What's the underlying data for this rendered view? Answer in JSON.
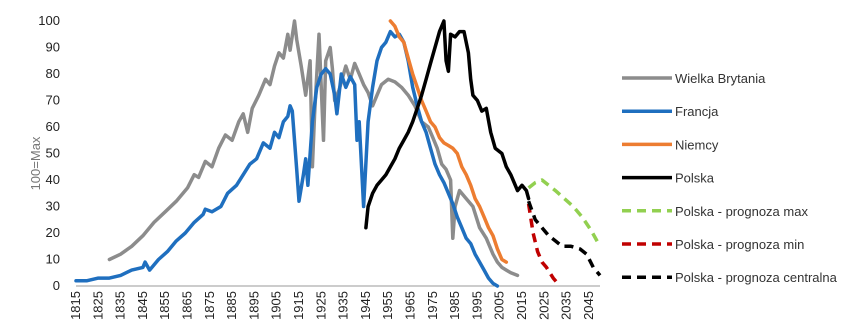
{
  "chart_data": {
    "type": "line",
    "ylabel": "100=Max",
    "ylim": [
      0,
      100
    ],
    "xlim": [
      1815,
      2050
    ],
    "y_ticks": [
      "0",
      "10",
      "20",
      "30",
      "40",
      "50",
      "60",
      "70",
      "80",
      "90",
      "100"
    ],
    "x_ticks": [
      "1815",
      "1825",
      "1835",
      "1845",
      "1855",
      "1865",
      "1875",
      "1885",
      "1895",
      "1905",
      "1915",
      "1925",
      "1935",
      "1945",
      "1955",
      "1965",
      "1975",
      "1985",
      "1995",
      "2005",
      "2015",
      "2025",
      "2035",
      "2045"
    ],
    "legend_position": "right",
    "grid": false,
    "series": [
      {
        "name": "Wielka Brytania",
        "color": "#8c8c8c",
        "dash": false,
        "points": [
          [
            1830,
            10
          ],
          [
            1835,
            12
          ],
          [
            1840,
            15
          ],
          [
            1845,
            19
          ],
          [
            1850,
            24
          ],
          [
            1855,
            28
          ],
          [
            1860,
            32
          ],
          [
            1865,
            37
          ],
          [
            1868,
            42
          ],
          [
            1870,
            41
          ],
          [
            1873,
            47
          ],
          [
            1876,
            45
          ],
          [
            1879,
            52
          ],
          [
            1882,
            57
          ],
          [
            1885,
            55
          ],
          [
            1888,
            62
          ],
          [
            1890,
            65
          ],
          [
            1892,
            58
          ],
          [
            1894,
            67
          ],
          [
            1897,
            72
          ],
          [
            1900,
            78
          ],
          [
            1902,
            76
          ],
          [
            1904,
            83
          ],
          [
            1906,
            88
          ],
          [
            1908,
            86
          ],
          [
            1910,
            95
          ],
          [
            1911,
            89
          ],
          [
            1913,
            100
          ],
          [
            1914,
            93
          ],
          [
            1916,
            83
          ],
          [
            1918,
            72
          ],
          [
            1920,
            85
          ],
          [
            1921,
            45
          ],
          [
            1922,
            65
          ],
          [
            1924,
            95
          ],
          [
            1926,
            55
          ],
          [
            1927,
            85
          ],
          [
            1929,
            90
          ],
          [
            1930,
            82
          ],
          [
            1931,
            70
          ],
          [
            1933,
            74
          ],
          [
            1936,
            83
          ],
          [
            1938,
            78
          ],
          [
            1940,
            84
          ],
          [
            1942,
            80
          ],
          [
            1944,
            76
          ],
          [
            1946,
            73
          ],
          [
            1948,
            68
          ],
          [
            1950,
            72
          ],
          [
            1952,
            76
          ],
          [
            1955,
            78
          ],
          [
            1958,
            77
          ],
          [
            1961,
            75
          ],
          [
            1964,
            72
          ],
          [
            1967,
            68
          ],
          [
            1970,
            62
          ],
          [
            1973,
            60
          ],
          [
            1975,
            56
          ],
          [
            1977,
            52
          ],
          [
            1979,
            46
          ],
          [
            1981,
            44
          ],
          [
            1983,
            40
          ],
          [
            1984,
            18
          ],
          [
            1985,
            30
          ],
          [
            1987,
            36
          ],
          [
            1990,
            33
          ],
          [
            1993,
            30
          ],
          [
            1996,
            22
          ],
          [
            1999,
            18
          ],
          [
            2002,
            12
          ],
          [
            2004,
            9
          ],
          [
            2006,
            7
          ],
          [
            2008,
            6
          ],
          [
            2010,
            5
          ],
          [
            2013,
            4
          ]
        ]
      },
      {
        "name": "Francja",
        "color": "#1f6fbf",
        "dash": false,
        "points": [
          [
            1815,
            2
          ],
          [
            1820,
            2
          ],
          [
            1825,
            3
          ],
          [
            1830,
            3
          ],
          [
            1835,
            4
          ],
          [
            1840,
            6
          ],
          [
            1845,
            7
          ],
          [
            1846,
            9
          ],
          [
            1848,
            6
          ],
          [
            1852,
            10
          ],
          [
            1856,
            13
          ],
          [
            1860,
            17
          ],
          [
            1864,
            20
          ],
          [
            1868,
            24
          ],
          [
            1872,
            27
          ],
          [
            1873,
            29
          ],
          [
            1876,
            28
          ],
          [
            1880,
            30
          ],
          [
            1883,
            35
          ],
          [
            1887,
            38
          ],
          [
            1890,
            42
          ],
          [
            1893,
            46
          ],
          [
            1896,
            48
          ],
          [
            1899,
            54
          ],
          [
            1902,
            52
          ],
          [
            1904,
            58
          ],
          [
            1906,
            56
          ],
          [
            1908,
            62
          ],
          [
            1910,
            64
          ],
          [
            1911,
            68
          ],
          [
            1912,
            66
          ],
          [
            1914,
            44
          ],
          [
            1915,
            32
          ],
          [
            1917,
            42
          ],
          [
            1918,
            48
          ],
          [
            1919,
            38
          ],
          [
            1921,
            62
          ],
          [
            1923,
            75
          ],
          [
            1925,
            80
          ],
          [
            1927,
            82
          ],
          [
            1929,
            80
          ],
          [
            1931,
            72
          ],
          [
            1932,
            65
          ],
          [
            1934,
            80
          ],
          [
            1936,
            75
          ],
          [
            1938,
            79
          ],
          [
            1940,
            76
          ],
          [
            1941,
            55
          ],
          [
            1942,
            62
          ],
          [
            1944,
            30
          ],
          [
            1946,
            62
          ],
          [
            1948,
            75
          ],
          [
            1950,
            85
          ],
          [
            1952,
            90
          ],
          [
            1954,
            92
          ],
          [
            1956,
            96
          ],
          [
            1958,
            94
          ],
          [
            1960,
            95
          ],
          [
            1962,
            92
          ],
          [
            1964,
            85
          ],
          [
            1966,
            75
          ],
          [
            1968,
            68
          ],
          [
            1970,
            62
          ],
          [
            1972,
            58
          ],
          [
            1974,
            52
          ],
          [
            1976,
            46
          ],
          [
            1978,
            42
          ],
          [
            1980,
            39
          ],
          [
            1982,
            35
          ],
          [
            1984,
            31
          ],
          [
            1986,
            26
          ],
          [
            1988,
            22
          ],
          [
            1990,
            18
          ],
          [
            1992,
            16
          ],
          [
            1994,
            12
          ],
          [
            1996,
            9
          ],
          [
            1998,
            6
          ],
          [
            2000,
            3
          ],
          [
            2002,
            1
          ],
          [
            2004,
            0
          ]
        ]
      },
      {
        "name": "Niemcy",
        "color": "#ed7d31",
        "dash": false,
        "points": [
          [
            1956,
            100
          ],
          [
            1958,
            98
          ],
          [
            1960,
            94
          ],
          [
            1962,
            92
          ],
          [
            1964,
            86
          ],
          [
            1966,
            80
          ],
          [
            1968,
            75
          ],
          [
            1970,
            70
          ],
          [
            1972,
            66
          ],
          [
            1974,
            62
          ],
          [
            1976,
            60
          ],
          [
            1978,
            56
          ],
          [
            1980,
            54
          ],
          [
            1982,
            53
          ],
          [
            1984,
            52
          ],
          [
            1986,
            50
          ],
          [
            1988,
            45
          ],
          [
            1990,
            42
          ],
          [
            1992,
            38
          ],
          [
            1994,
            33
          ],
          [
            1996,
            30
          ],
          [
            1998,
            26
          ],
          [
            2000,
            22
          ],
          [
            2002,
            19
          ],
          [
            2004,
            14
          ],
          [
            2006,
            10
          ],
          [
            2008,
            9
          ]
        ]
      },
      {
        "name": "Polska",
        "color": "#000000",
        "dash": false,
        "points": [
          [
            1945,
            22
          ],
          [
            1946,
            30
          ],
          [
            1948,
            35
          ],
          [
            1950,
            38
          ],
          [
            1952,
            40
          ],
          [
            1954,
            42
          ],
          [
            1956,
            45
          ],
          [
            1958,
            48
          ],
          [
            1960,
            52
          ],
          [
            1962,
            55
          ],
          [
            1964,
            58
          ],
          [
            1966,
            62
          ],
          [
            1968,
            67
          ],
          [
            1970,
            72
          ],
          [
            1972,
            78
          ],
          [
            1974,
            84
          ],
          [
            1976,
            90
          ],
          [
            1978,
            96
          ],
          [
            1980,
            100
          ],
          [
            1981,
            85
          ],
          [
            1982,
            81
          ],
          [
            1983,
            95
          ],
          [
            1985,
            94
          ],
          [
            1987,
            96
          ],
          [
            1989,
            96
          ],
          [
            1991,
            88
          ],
          [
            1992,
            78
          ],
          [
            1993,
            72
          ],
          [
            1995,
            70
          ],
          [
            1997,
            66
          ],
          [
            1999,
            67
          ],
          [
            2001,
            58
          ],
          [
            2003,
            52
          ],
          [
            2006,
            50
          ],
          [
            2008,
            45
          ],
          [
            2010,
            42
          ],
          [
            2012,
            38
          ],
          [
            2013,
            36
          ],
          [
            2015,
            38
          ],
          [
            2017,
            36
          ],
          [
            2018,
            33
          ]
        ]
      },
      {
        "name": "Polska - prognoza max",
        "color": "#92d050",
        "dash": true,
        "points": [
          [
            2018,
            37
          ],
          [
            2021,
            39
          ],
          [
            2024,
            40
          ],
          [
            2027,
            38
          ],
          [
            2030,
            36
          ],
          [
            2034,
            33
          ],
          [
            2038,
            30
          ],
          [
            2042,
            26
          ],
          [
            2046,
            21
          ],
          [
            2050,
            15
          ]
        ]
      },
      {
        "name": "Polska - prognoza min",
        "color": "#c00000",
        "dash": true,
        "points": [
          [
            2018,
            31
          ],
          [
            2020,
            20
          ],
          [
            2022,
            13
          ],
          [
            2024,
            9
          ],
          [
            2026,
            7
          ],
          [
            2029,
            3
          ],
          [
            2032,
            0
          ]
        ]
      },
      {
        "name": "Polska - prognoza centralna",
        "color": "#000000",
        "dash": true,
        "points": [
          [
            2018,
            32
          ],
          [
            2021,
            25
          ],
          [
            2024,
            22
          ],
          [
            2027,
            19
          ],
          [
            2030,
            17
          ],
          [
            2033,
            15
          ],
          [
            2037,
            15
          ],
          [
            2041,
            14
          ],
          [
            2044,
            12
          ],
          [
            2047,
            7
          ],
          [
            2050,
            4
          ]
        ]
      }
    ]
  }
}
